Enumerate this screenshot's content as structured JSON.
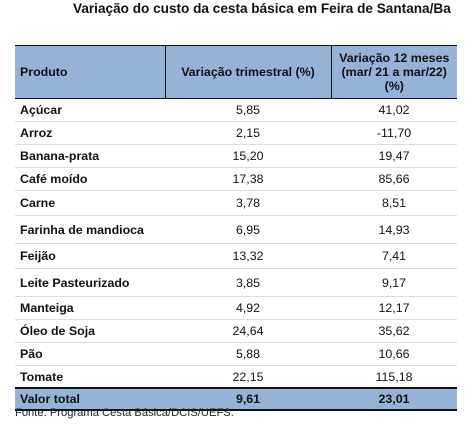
{
  "title": "Variação do custo da cesta básica em Feira de Santana/Ba",
  "table": {
    "header": {
      "produto": "Produto",
      "trimestral": "Variação trimestral (%)",
      "doze_meses_line1": "Variação 12 meses",
      "doze_meses_line2": "(mar/ 21 a mar/22)",
      "doze_meses_line3": "(%)"
    },
    "rows": [
      {
        "produto": "Açúcar",
        "trimestral": "5,85",
        "doze_meses": "41,02"
      },
      {
        "produto": "Arroz",
        "trimestral": "2,15",
        "doze_meses": "-11,70"
      },
      {
        "produto": "Banana-prata",
        "trimestral": "15,20",
        "doze_meses": "19,47"
      },
      {
        "produto": "Café moído",
        "trimestral": "17,38",
        "doze_meses": "85,66"
      },
      {
        "produto": "Carne",
        "trimestral": "3,78",
        "doze_meses": "8,51"
      },
      {
        "produto": "Farinha de mandioca",
        "trimestral": "6,95",
        "doze_meses": "14,93"
      },
      {
        "produto": "Feijão",
        "trimestral": "13,32",
        "doze_meses": "7,41"
      },
      {
        "produto": "Leite Pasteurizado",
        "trimestral": "3,85",
        "doze_meses": "9,17"
      },
      {
        "produto": "Manteiga",
        "trimestral": "4,92",
        "doze_meses": "12,17"
      },
      {
        "produto": "Óleo de Soja",
        "trimestral": "24,64",
        "doze_meses": "35,62"
      },
      {
        "produto": "Pão",
        "trimestral": "5,88",
        "doze_meses": "10,66"
      },
      {
        "produto": "Tomate",
        "trimestral": "22,15",
        "doze_meses": "115,18"
      }
    ],
    "total": {
      "produto": "Valor total",
      "trimestral": "9,61",
      "doze_meses": "23,01"
    }
  },
  "source": "Fonte: Programa Cesta Básica/DCIS/UEFS.",
  "colors": {
    "header_fill": "#95b3d7"
  }
}
